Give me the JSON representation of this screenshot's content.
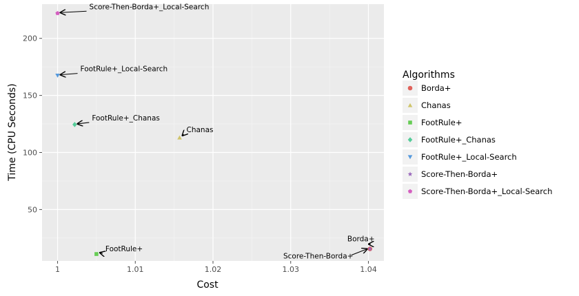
{
  "chart_data": {
    "type": "scatter",
    "title": "",
    "xlabel": "Cost",
    "ylabel": "Time (CPU Seconds)",
    "xlim": [
      0.998,
      1.042
    ],
    "ylim": [
      5,
      230
    ],
    "xticks": [
      1,
      1.01,
      1.02,
      1.03,
      1.04
    ],
    "xtick_labels": [
      "1",
      "1.01",
      "1.02",
      "1.03",
      "1.04"
    ],
    "yticks": [
      50,
      100,
      150,
      200
    ],
    "ytick_labels": [
      "50",
      "100",
      "150",
      "200"
    ],
    "grid": true,
    "legend": {
      "title": "Algorithms",
      "position": "right"
    },
    "series": [
      {
        "name": "Borda+",
        "shape": "circle",
        "color": "#e0625b",
        "x": 1.0402,
        "y": 15.5,
        "label": "Borda+"
      },
      {
        "name": "Chanas",
        "shape": "triangle-up",
        "color": "#cfc46a",
        "x": 1.0157,
        "y": 113,
        "label": "Chanas"
      },
      {
        "name": "FootRule+",
        "shape": "square",
        "color": "#66cc55",
        "x": 1.005,
        "y": 11,
        "label": "FootRule+"
      },
      {
        "name": "FootRule+_Chanas",
        "shape": "diamond",
        "color": "#55cc99",
        "x": 1.0022,
        "y": 124.5,
        "label": "FootRule+_Chanas"
      },
      {
        "name": "FootRule+_Local-Search",
        "shape": "triangle-down",
        "color": "#5599dd",
        "x": 1.0,
        "y": 167.5,
        "label": "FootRule+_Local-Search"
      },
      {
        "name": "Score-Then-Borda+",
        "shape": "star",
        "color": "#9966bb",
        "x": 1.0402,
        "y": 15.5,
        "label": "Score-Then-Borda+"
      },
      {
        "name": "Score-Then-Borda+_Local-Search",
        "shape": "pentagon",
        "color": "#d45fc0",
        "x": 1.0,
        "y": 222,
        "label": "Score-Then-Borda+_Local-Search"
      }
    ]
  }
}
